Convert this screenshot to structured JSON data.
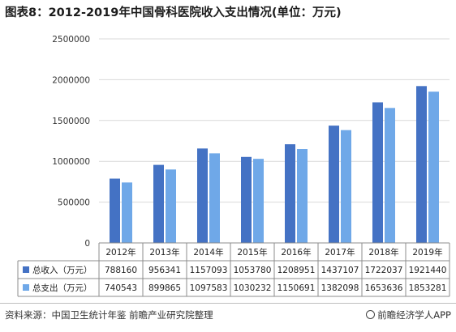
{
  "title": "图表8：2012-2019年中国骨科医院收入支出情况(单位：万元)",
  "source": "资料来源：中国卫生统计年鉴 前瞻产业研究院整理",
  "brand": "前瞻经济学人APP",
  "colors": {
    "income": "#4472C4",
    "expense": "#6FA8E8",
    "grid": "#d9d9d9",
    "axis": "#8c8c8c"
  },
  "chart_data": {
    "type": "bar",
    "categories": [
      "2012年",
      "2013年",
      "2014年",
      "2015年",
      "2016年",
      "2017年",
      "2018年",
      "2019年"
    ],
    "series": [
      {
        "name": "总收入（万元）",
        "values": [
          788160,
          956341,
          1157093,
          1053780,
          1208951,
          1437107,
          1722037,
          1921440
        ]
      },
      {
        "name": "总支出（万元）",
        "values": [
          740543,
          899865,
          1097583,
          1030232,
          1150691,
          1382098,
          1653636,
          1853281
        ]
      }
    ],
    "yticks": [
      0,
      500000,
      1000000,
      1500000,
      2000000,
      2500000
    ],
    "ylim": [
      0,
      2500000
    ],
    "grid": true,
    "legend": "data-table"
  }
}
